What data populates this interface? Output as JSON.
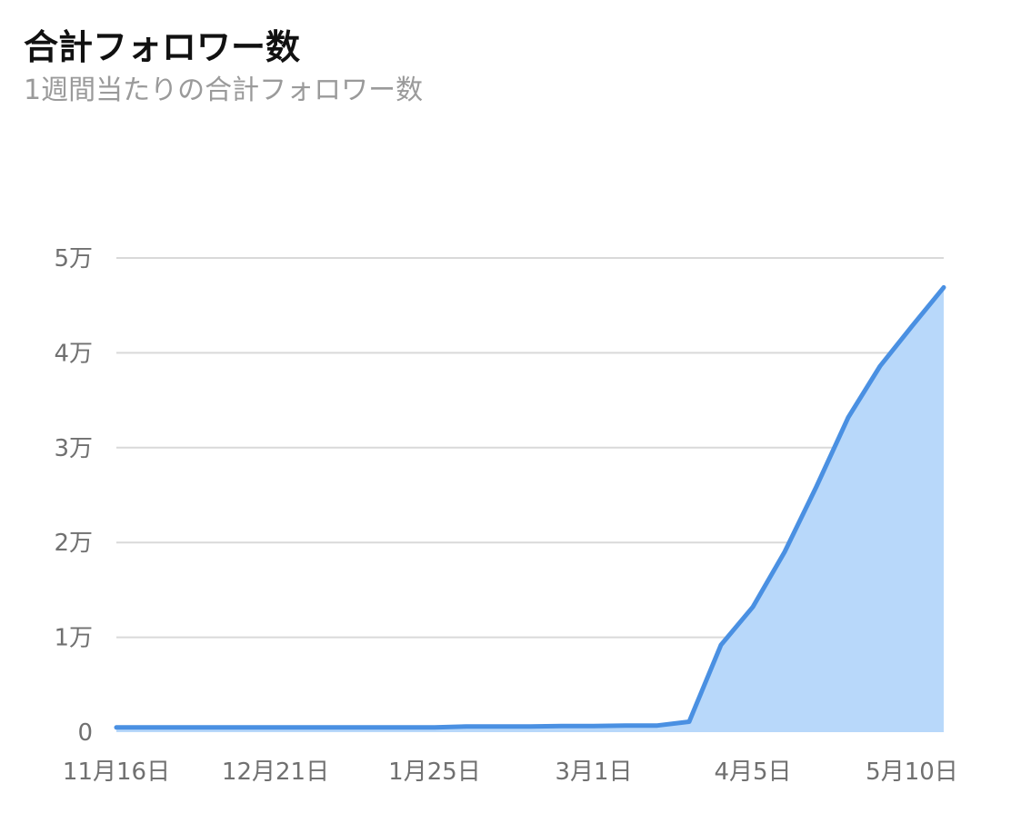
{
  "header": {
    "title": "合計フォロワー数",
    "subtitle": "1週間当たりの合計フォロワー数"
  },
  "colors": {
    "line": "#4a90e2",
    "area": "#b8d8fa",
    "grid": "#d9d9d9",
    "tick_text": "#707070"
  },
  "chart_data": {
    "type": "area",
    "title": "合計フォロワー数",
    "subtitle": "1週間当たりの合計フォロワー数",
    "xlabel": "",
    "ylabel": "",
    "ylim": [
      0,
      50000
    ],
    "yticks": [
      {
        "value": 0,
        "label": "0"
      },
      {
        "value": 10000,
        "label": "1万"
      },
      {
        "value": 20000,
        "label": "2万"
      },
      {
        "value": 30000,
        "label": "3万"
      },
      {
        "value": 40000,
        "label": "4万"
      },
      {
        "value": 50000,
        "label": "5万"
      }
    ],
    "xticks": [
      {
        "index": 0,
        "label": "11月16日"
      },
      {
        "index": 5,
        "label": "12月21日"
      },
      {
        "index": 10,
        "label": "1月25日"
      },
      {
        "index": 15,
        "label": "3月1日"
      },
      {
        "index": 20,
        "label": "4月5日"
      },
      {
        "index": 25,
        "label": "5月10日"
      }
    ],
    "grid": true,
    "legend": "none",
    "series": [
      {
        "values": [
          500,
          500,
          500,
          500,
          500,
          500,
          500,
          500,
          500,
          500,
          500,
          600,
          600,
          600,
          650,
          650,
          700,
          700,
          1100,
          9200,
          13200,
          19000,
          25900,
          33200,
          38600,
          42800,
          46900
        ]
      }
    ]
  }
}
